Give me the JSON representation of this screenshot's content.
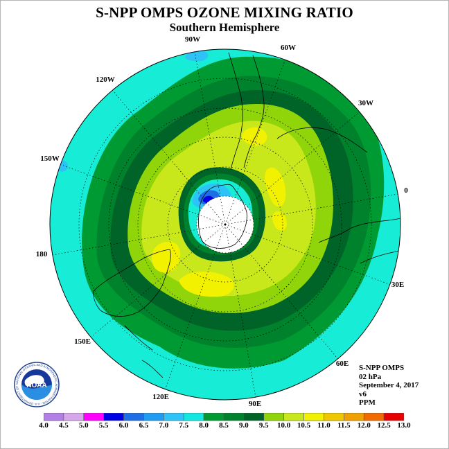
{
  "title": "S-NPP OMPS OZONE MIXING RATIO",
  "subtitle": "Southern Hemisphere",
  "longitude_labels": [
    "0",
    "30E",
    "60E",
    "90E",
    "120E",
    "150E",
    "180",
    "150W",
    "120W",
    "90W",
    "60W",
    "30W"
  ],
  "info": {
    "instrument": "S-NPP OMPS",
    "level": "02 hPa",
    "date": "September 4, 2017",
    "version": "v6",
    "units": "PPM"
  },
  "logo": {
    "text": "NOAA",
    "ring_text": "NATIONAL OCEANIC AND ATMOSPHERIC ADMINISTRATION · U.S. DEPARTMENT OF COMMERCE"
  },
  "chart_data": {
    "type": "heatmap",
    "projection": "south polar stereographic",
    "colorbar": {
      "ticks": [
        "4.0",
        "4.5",
        "5.0",
        "5.5",
        "6.0",
        "6.5",
        "7.0",
        "7.5",
        "8.0",
        "8.5",
        "9.0",
        "9.5",
        "10.0",
        "10.5",
        "11.0",
        "11.5",
        "12.0",
        "12.5",
        "13.0"
      ],
      "colors": [
        "#b17fe6",
        "#d7a7ec",
        "#ff00ff",
        "#0000e6",
        "#1e6fe6",
        "#1f9bf2",
        "#2ec3f7",
        "#12e8e0",
        "#009a32",
        "#00812c",
        "#006428",
        "#90d40a",
        "#c8e81c",
        "#f2f200",
        "#f0c800",
        "#f0a000",
        "#f06a00",
        "#e60000",
        "#8b5a3c"
      ]
    }
  }
}
